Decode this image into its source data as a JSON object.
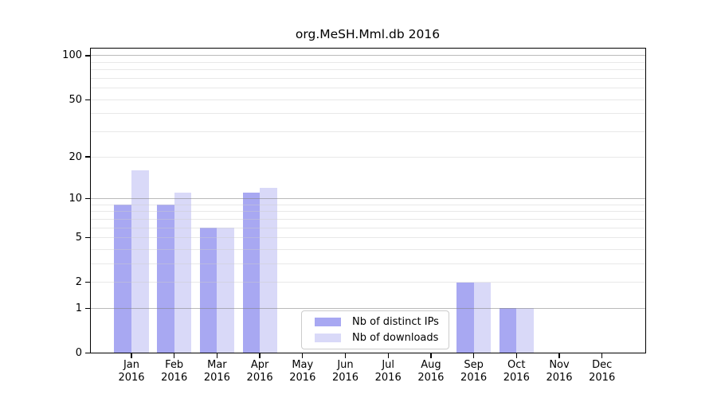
{
  "chart_data": {
    "type": "bar",
    "title": "org.MeSH.Mml.db 2016",
    "categories": [
      "Jan",
      "Feb",
      "Mar",
      "Apr",
      "May",
      "Jun",
      "Jul",
      "Aug",
      "Sep",
      "Oct",
      "Nov",
      "Dec"
    ],
    "category_year": "2016",
    "series": [
      {
        "name": "Nb of distinct IPs",
        "color": "#a8a8f2",
        "values": [
          9,
          9,
          6,
          11,
          0,
          0,
          0,
          0,
          2,
          1,
          0,
          0
        ]
      },
      {
        "name": "Nb of downloads",
        "color": "#d9d9f8",
        "values": [
          16,
          11,
          6,
          12,
          0,
          0,
          0,
          0,
          2,
          1,
          0,
          0
        ]
      }
    ],
    "yscale": "log1p",
    "ylim": [
      0,
      115
    ],
    "ytick_labels": [
      "0",
      "1",
      "2",
      "5",
      "10",
      "20",
      "50",
      "100"
    ],
    "yticks": [
      0,
      1,
      2,
      5,
      10,
      20,
      50,
      100
    ],
    "grid": {
      "major_values": [
        1,
        10,
        100
      ],
      "minor_values": [
        2,
        3,
        4,
        5,
        6,
        7,
        8,
        9,
        20,
        30,
        40,
        50,
        60,
        70,
        80,
        90
      ]
    },
    "legend": {
      "position": "lower-center",
      "items": [
        "Nb of distinct IPs",
        "Nb of downloads"
      ]
    },
    "colors": {
      "bar_distinct_ips": "#a8a8f2",
      "bar_downloads": "#d9d9f8",
      "major_grid": "#bababa",
      "minor_grid": "#e6e6e6",
      "axis": "#000000",
      "legend_border": "#cccccc"
    }
  }
}
